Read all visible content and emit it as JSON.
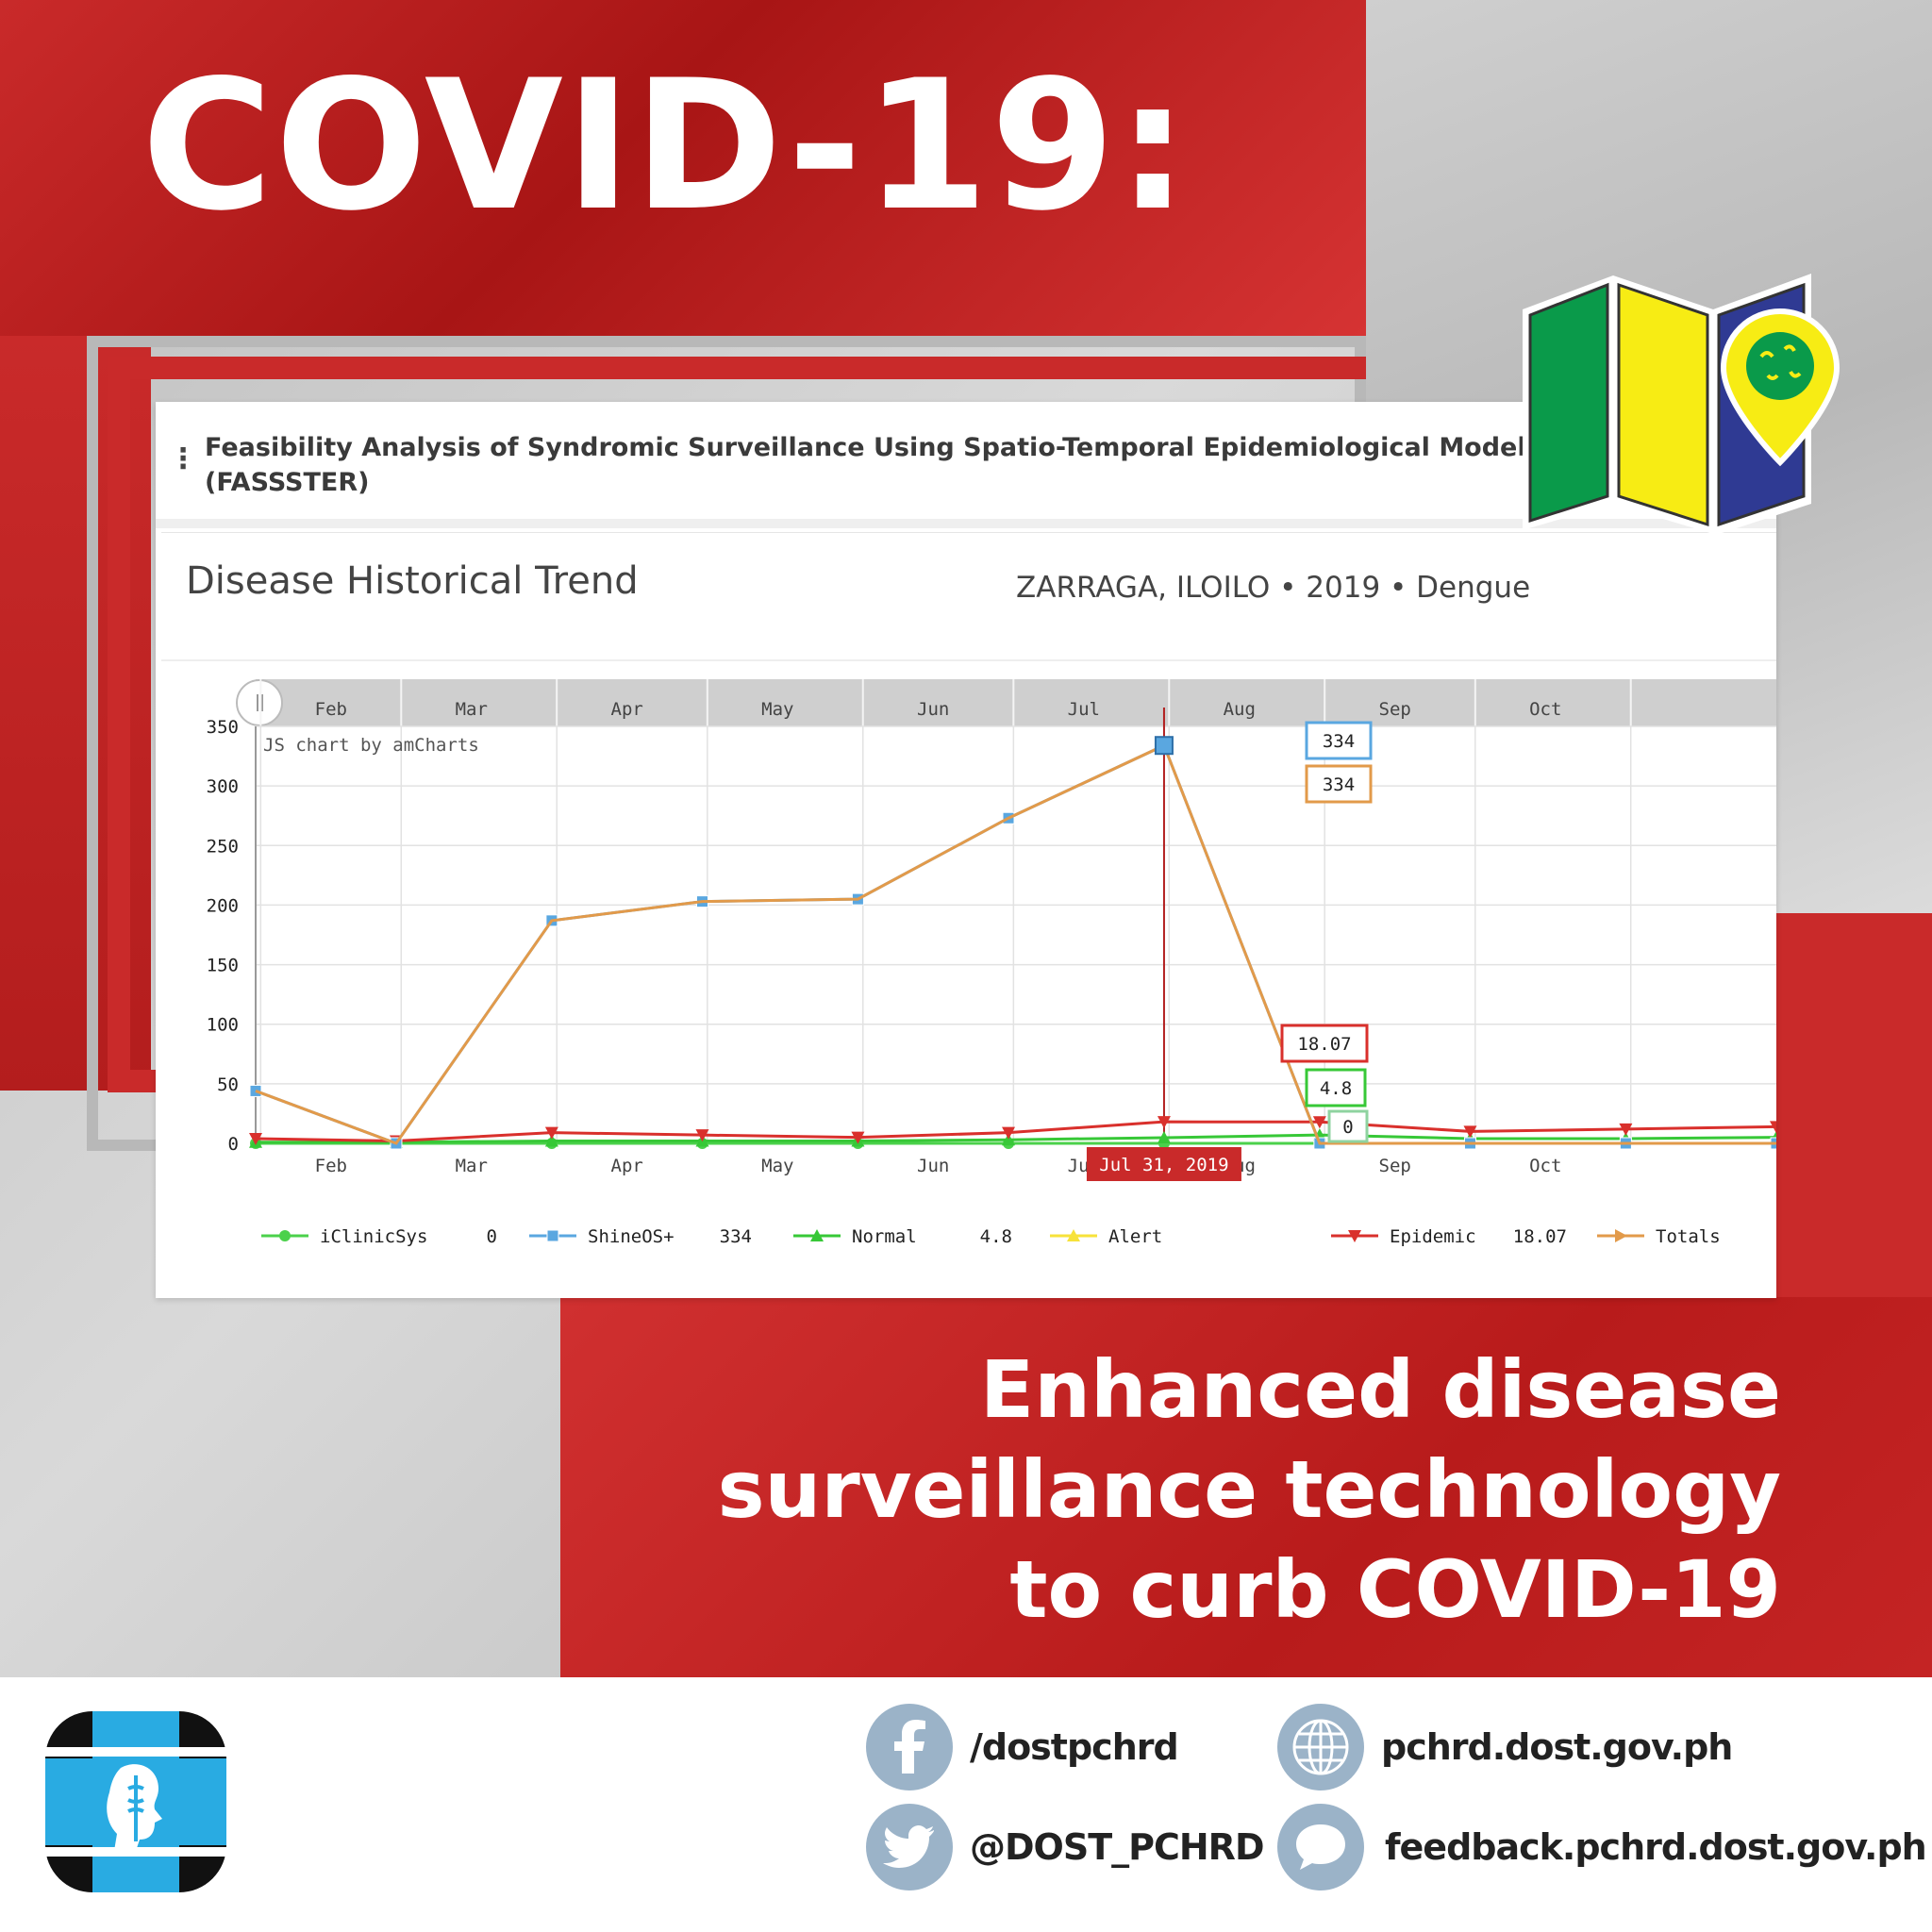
{
  "headline": "COVID-19:",
  "panel": {
    "menu_icon": "vertical-ellipsis-icon",
    "title": "Feasibility Analysis of Syndromic Surveillance Using Spatio-Temporal Epidemiological Modeler (FASSSTER)"
  },
  "card": {
    "title": "Disease Historical Trend",
    "subtitle": "ZARRAGA, ILOILO • 2019 • Dengue",
    "credit": "JS chart by amCharts"
  },
  "chart_data": {
    "type": "line",
    "title": "Disease Historical Trend",
    "subtitle": "ZARRAGA, ILOILO • 2019 • Dengue",
    "x": [
      "2019-01-31",
      "2019-02-28",
      "2019-03-31",
      "2019-04-30",
      "2019-05-31",
      "2019-06-30",
      "2019-07-31",
      "2019-08-31",
      "2019-09-30",
      "2019-10-31",
      "2019-11-30"
    ],
    "xticks": [
      "Feb",
      "Mar",
      "Apr",
      "May",
      "Jun",
      "Jul",
      "Aug",
      "Sep",
      "Oct"
    ],
    "yticks": [
      0,
      50,
      100,
      150,
      200,
      250,
      300,
      350
    ],
    "ylim": [
      0,
      350
    ],
    "grid": true,
    "legend_position": "bottom",
    "cursor": {
      "date": "2019-07-31",
      "label": "Jul 31, 2019"
    },
    "series": [
      {
        "name": "iClinicSys",
        "color": "#4bd14b",
        "marker": "circle",
        "values": [
          0,
          0,
          0,
          0,
          0,
          0,
          0,
          0,
          0,
          0,
          0
        ],
        "legend_value": "0"
      },
      {
        "name": "ShineOS+",
        "color": "#5aa7e0",
        "marker": "square",
        "values": [
          44,
          0,
          187,
          203,
          205,
          273,
          334,
          0,
          0,
          0,
          0
        ],
        "legend_value": "334"
      },
      {
        "name": "Normal",
        "color": "#37c837",
        "marker": "triangle-up",
        "values": [
          1,
          1,
          2,
          2,
          2,
          3,
          4.8,
          7,
          4,
          4,
          5
        ],
        "legend_value": "4.8"
      },
      {
        "name": "Alert",
        "color": "#f7e23a",
        "marker": "triangle-up",
        "values": [
          null,
          null,
          null,
          null,
          null,
          null,
          null,
          null,
          null,
          null,
          null
        ],
        "legend_value": ""
      },
      {
        "name": "Epidemic",
        "color": "#d9302c",
        "marker": "triangle-down",
        "values": [
          4,
          2,
          9,
          7,
          5,
          9,
          18.07,
          18,
          10,
          12,
          14
        ],
        "legend_value": "18.07"
      },
      {
        "name": "Totals",
        "color": "#e29a4a",
        "marker": "triangle-right",
        "values": [
          44,
          0,
          187,
          203,
          205,
          273,
          334,
          0,
          0,
          0,
          0
        ],
        "legend_value": ""
      }
    ],
    "balloons": [
      {
        "series": "ShineOS+",
        "text": "334"
      },
      {
        "series": "Totals",
        "text": "334"
      },
      {
        "series": "Epidemic",
        "text": "18.07"
      },
      {
        "series": "Normal",
        "text": "4.8"
      },
      {
        "series": "iClinicSys",
        "text": "0"
      }
    ]
  },
  "tagline": {
    "line1": "Enhanced disease",
    "line2": "surveillance technology",
    "line3": "to curb COVID-19"
  },
  "footer": {
    "logo_icon": "dost-pchrd-logo",
    "facebook": {
      "icon": "facebook-icon",
      "label": "/dostpchrd"
    },
    "twitter": {
      "icon": "twitter-icon",
      "label": "@DOST_PCHRD"
    },
    "website": {
      "icon": "globe-icon",
      "label": "pchrd.dost.gov.ph"
    },
    "feedback": {
      "icon": "chat-bubble-icon",
      "label": "feedback.pchrd.dost.gov.ph"
    }
  },
  "colors": {
    "brand_red": "#c92a2a",
    "map_green": "#0a9a4a",
    "map_yellow": "#f7ec14",
    "map_blue": "#2f3a93",
    "social_circle": "#9bb3c8",
    "logo_blue": "#29abe2"
  }
}
